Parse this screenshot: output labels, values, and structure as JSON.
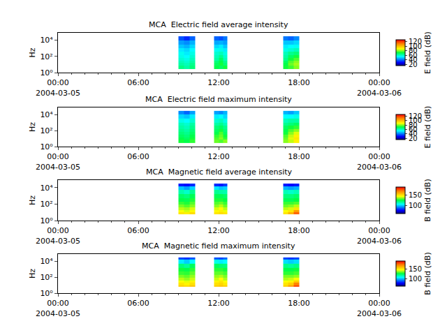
{
  "chart_data": [
    {
      "type": "heatmap",
      "title": "MCA  Electric field average intensity",
      "y_label": "Hz",
      "colorbar_label": "E field (dB)",
      "log": "y",
      "xlim": [
        "2004-03-05 00:00",
        "2004-03-06 00:00"
      ],
      "xticks": [
        {
          "value": "2004-03-05 00:00",
          "label": "00:00\n2004-03-05"
        },
        {
          "value": "2004-03-05 06:00",
          "label": "06:00"
        },
        {
          "value": "2004-03-05 12:00",
          "label": "12:00"
        },
        {
          "value": "2004-03-05 18:00",
          "label": "18:00"
        },
        {
          "value": "2004-03-06 00:00",
          "label": "00:00\n2004-03-06"
        }
      ],
      "ylim": [
        1,
        80000
      ],
      "yticks": [
        {
          "value": 1,
          "label": "10⁰"
        },
        {
          "value": 100,
          "label": "10²"
        },
        {
          "value": 10000,
          "label": "10⁴"
        }
      ],
      "zlim": [
        14,
        128
      ],
      "zticks": [
        20,
        40,
        60,
        80,
        100,
        120
      ],
      "x_edges": [
        "2004-03-05 09:00",
        "2004-03-05 09:25",
        "2004-03-05 09:50",
        "2004-03-05 10:15",
        "2004-03-05 11:40",
        "2004-03-05 12:00",
        "2004-03-05 12:20",
        "2004-03-05 12:40",
        "2004-03-05 16:50",
        "2004-03-05 17:13",
        "2004-03-05 17:36",
        "2004-03-05 18:00"
      ],
      "y_edges": [
        3,
        7,
        15,
        30,
        70,
        150,
        400,
        1000,
        3000,
        10000,
        30000
      ],
      "z": [
        [
          65,
          62,
          66,
          null,
          70,
          68,
          72,
          null,
          72,
          75,
          80
        ],
        [
          62,
          60,
          64,
          null,
          68,
          72,
          66,
          null,
          70,
          78,
          82
        ],
        [
          60,
          58,
          62,
          null,
          66,
          70,
          64,
          null,
          68,
          76,
          80
        ],
        [
          58,
          56,
          60,
          null,
          62,
          68,
          60,
          null,
          64,
          72,
          76
        ],
        [
          56,
          54,
          58,
          null,
          60,
          64,
          58,
          null,
          62,
          68,
          72
        ],
        [
          55,
          52,
          56,
          null,
          58,
          60,
          56,
          null,
          60,
          64,
          66
        ],
        [
          52,
          50,
          54,
          null,
          55,
          56,
          52,
          null,
          56,
          58,
          60
        ],
        [
          48,
          46,
          50,
          null,
          50,
          52,
          48,
          null,
          52,
          54,
          55
        ],
        [
          44,
          42,
          46,
          null,
          45,
          46,
          44,
          null,
          48,
          48,
          50
        ],
        [
          36,
          32,
          38,
          null,
          38,
          36,
          40,
          null,
          40,
          38,
          42
        ]
      ]
    },
    {
      "type": "heatmap",
      "title": "MCA  Electric field maximum intensity",
      "y_label": "Hz",
      "colorbar_label": "E field (dB)",
      "log": "y",
      "xlim": [
        "2004-03-05 00:00",
        "2004-03-06 00:00"
      ],
      "xticks": [
        {
          "value": "2004-03-05 00:00",
          "label": "00:00\n2004-03-05"
        },
        {
          "value": "2004-03-05 06:00",
          "label": "06:00"
        },
        {
          "value": "2004-03-05 12:00",
          "label": "12:00"
        },
        {
          "value": "2004-03-05 18:00",
          "label": "18:00"
        },
        {
          "value": "2004-03-06 00:00",
          "label": "00:00\n2004-03-06"
        }
      ],
      "ylim": [
        1,
        80000
      ],
      "yticks": [
        {
          "value": 1,
          "label": "10⁰"
        },
        {
          "value": 100,
          "label": "10²"
        },
        {
          "value": 10000,
          "label": "10⁴"
        }
      ],
      "zlim": [
        14,
        128
      ],
      "zticks": [
        20,
        40,
        60,
        80,
        100,
        120
      ],
      "x_edges": [
        "2004-03-05 09:00",
        "2004-03-05 09:25",
        "2004-03-05 09:50",
        "2004-03-05 10:15",
        "2004-03-05 11:40",
        "2004-03-05 12:00",
        "2004-03-05 12:20",
        "2004-03-05 12:40",
        "2004-03-05 16:50",
        "2004-03-05 17:13",
        "2004-03-05 17:36",
        "2004-03-05 18:00"
      ],
      "y_edges": [
        3,
        7,
        15,
        30,
        70,
        150,
        400,
        1000,
        3000,
        10000,
        30000
      ],
      "z": [
        [
          72,
          70,
          74,
          null,
          78,
          76,
          80,
          null,
          80,
          84,
          90
        ],
        [
          70,
          68,
          72,
          null,
          76,
          80,
          74,
          null,
          78,
          86,
          92
        ],
        [
          68,
          66,
          70,
          null,
          74,
          78,
          72,
          null,
          76,
          84,
          90
        ],
        [
          66,
          64,
          68,
          null,
          70,
          76,
          68,
          null,
          72,
          80,
          86
        ],
        [
          64,
          62,
          66,
          null,
          68,
          72,
          66,
          null,
          70,
          76,
          80
        ],
        [
          62,
          60,
          64,
          null,
          66,
          68,
          64,
          null,
          68,
          72,
          74
        ],
        [
          60,
          58,
          62,
          null,
          62,
          64,
          60,
          null,
          64,
          66,
          68
        ],
        [
          56,
          54,
          58,
          null,
          58,
          60,
          56,
          null,
          60,
          62,
          62
        ],
        [
          50,
          48,
          52,
          null,
          52,
          54,
          50,
          null,
          54,
          54,
          56
        ],
        [
          42,
          38,
          44,
          null,
          44,
          42,
          46,
          null,
          46,
          44,
          48
        ]
      ]
    },
    {
      "type": "heatmap",
      "title": "MCA  Magnetic field average intensity",
      "y_label": "Hz",
      "colorbar_label": "B field (dB)",
      "log": "y",
      "xlim": [
        "2004-03-05 00:00",
        "2004-03-06 00:00"
      ],
      "xticks": [
        {
          "value": "2004-03-05 00:00",
          "label": "00:00\n2004-03-05"
        },
        {
          "value": "2004-03-05 06:00",
          "label": "06:00"
        },
        {
          "value": "2004-03-05 12:00",
          "label": "12:00"
        },
        {
          "value": "2004-03-05 18:00",
          "label": "18:00"
        },
        {
          "value": "2004-03-06 00:00",
          "label": "00:00\n2004-03-06"
        }
      ],
      "ylim": [
        1,
        80000
      ],
      "yticks": [
        {
          "value": 1,
          "label": "10⁰"
        },
        {
          "value": 100,
          "label": "10²"
        },
        {
          "value": 10000,
          "label": "10⁴"
        }
      ],
      "zlim": [
        62,
        190
      ],
      "zticks": [
        100,
        150
      ],
      "x_edges": [
        "2004-03-05 09:00",
        "2004-03-05 09:25",
        "2004-03-05 09:50",
        "2004-03-05 10:15",
        "2004-03-05 11:40",
        "2004-03-05 12:00",
        "2004-03-05 12:20",
        "2004-03-05 12:40",
        "2004-03-05 16:50",
        "2004-03-05 17:13",
        "2004-03-05 17:36",
        "2004-03-05 18:00"
      ],
      "y_edges": [
        6,
        10,
        20,
        40,
        80,
        200,
        500,
        1500,
        5000,
        15000,
        30000
      ],
      "z": [
        [
          150,
          148,
          152,
          null,
          150,
          152,
          150,
          null,
          150,
          160,
          175
        ],
        [
          145,
          142,
          146,
          null,
          146,
          148,
          144,
          null,
          145,
          150,
          165
        ],
        [
          140,
          138,
          142,
          null,
          142,
          145,
          140,
          null,
          140,
          142,
          150
        ],
        [
          135,
          132,
          136,
          null,
          136,
          140,
          134,
          null,
          134,
          136,
          140
        ],
        [
          130,
          128,
          132,
          null,
          132,
          134,
          130,
          null,
          130,
          130,
          132
        ],
        [
          125,
          124,
          128,
          null,
          128,
          128,
          126,
          null,
          124,
          124,
          126
        ],
        [
          122,
          120,
          124,
          null,
          124,
          124,
          122,
          null,
          120,
          120,
          122
        ],
        [
          115,
          112,
          118,
          null,
          118,
          116,
          115,
          null,
          114,
          112,
          114
        ],
        [
          100,
          96,
          102,
          null,
          104,
          100,
          102,
          null,
          98,
          96,
          98
        ],
        [
          80,
          78,
          82,
          null,
          82,
          80,
          84,
          null,
          80,
          78,
          80
        ]
      ]
    },
    {
      "type": "heatmap",
      "title": "MCA  Magnetic field maximum intensity",
      "y_label": "Hz",
      "colorbar_label": "B field (dB)",
      "log": "y",
      "xlim": [
        "2004-03-05 00:00",
        "2004-03-06 00:00"
      ],
      "xticks": [
        {
          "value": "2004-03-05 00:00",
          "label": "00:00\n2004-03-05"
        },
        {
          "value": "2004-03-05 06:00",
          "label": "06:00"
        },
        {
          "value": "2004-03-05 12:00",
          "label": "12:00"
        },
        {
          "value": "2004-03-05 18:00",
          "label": "18:00"
        },
        {
          "value": "2004-03-06 00:00",
          "label": "00:00\n2004-03-06"
        }
      ],
      "ylim": [
        1,
        80000
      ],
      "yticks": [
        {
          "value": 1,
          "label": "10⁰"
        },
        {
          "value": 100,
          "label": "10²"
        },
        {
          "value": 10000,
          "label": "10⁴"
        }
      ],
      "zlim": [
        62,
        190
      ],
      "zticks": [
        100,
        150
      ],
      "x_edges": [
        "2004-03-05 09:00",
        "2004-03-05 09:25",
        "2004-03-05 09:50",
        "2004-03-05 10:15",
        "2004-03-05 11:40",
        "2004-03-05 12:00",
        "2004-03-05 12:20",
        "2004-03-05 12:40",
        "2004-03-05 16:50",
        "2004-03-05 17:13",
        "2004-03-05 17:36",
        "2004-03-05 18:00"
      ],
      "y_edges": [
        6,
        10,
        20,
        40,
        80,
        200,
        500,
        1500,
        5000,
        15000,
        30000
      ],
      "z": [
        [
          155,
          153,
          157,
          null,
          155,
          157,
          155,
          null,
          155,
          165,
          180
        ],
        [
          150,
          147,
          151,
          null,
          151,
          153,
          149,
          null,
          150,
          155,
          170
        ],
        [
          145,
          143,
          147,
          null,
          147,
          150,
          145,
          null,
          145,
          147,
          155
        ],
        [
          140,
          137,
          141,
          null,
          141,
          145,
          139,
          null,
          139,
          141,
          145
        ],
        [
          135,
          133,
          137,
          null,
          137,
          139,
          135,
          null,
          135,
          135,
          137
        ],
        [
          130,
          129,
          133,
          null,
          133,
          133,
          131,
          null,
          129,
          129,
          131
        ],
        [
          127,
          125,
          129,
          null,
          129,
          129,
          127,
          null,
          125,
          125,
          127
        ],
        [
          120,
          117,
          123,
          null,
          123,
          121,
          120,
          null,
          119,
          117,
          119
        ],
        [
          105,
          101,
          107,
          null,
          109,
          105,
          107,
          null,
          103,
          101,
          103
        ],
        [
          85,
          83,
          87,
          null,
          87,
          85,
          89,
          null,
          85,
          83,
          85
        ]
      ]
    }
  ]
}
